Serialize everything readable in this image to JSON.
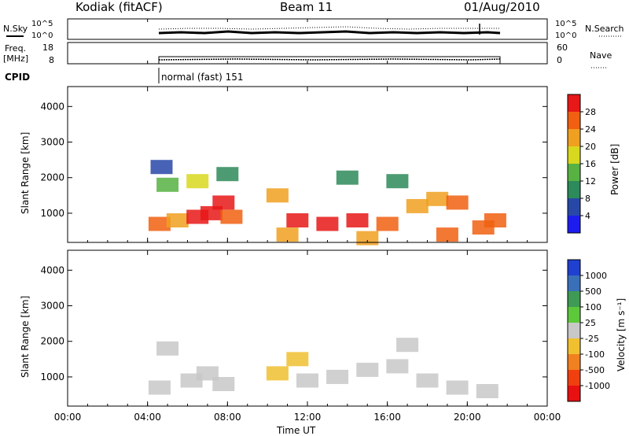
{
  "header": {
    "title": "Kodiak (fitACF)",
    "beam": "Beam 11",
    "date": "01/Aug/2010"
  },
  "noise_panel": {
    "left_label": "N.Sky",
    "left_ticks": [
      "10^5",
      "10^0"
    ],
    "right_ticks": [
      "10^5",
      "10^0"
    ],
    "right_label": "N.Search"
  },
  "freq_panel": {
    "left_label_line1": "Freq.",
    "left_label_line2": "[MHz]",
    "left_ticks": [
      "18",
      "8"
    ],
    "right_ticks": [
      "60",
      "0"
    ],
    "right_label": "Nave"
  },
  "cpid": {
    "label": "CPID",
    "program": "normal (fast) 151"
  },
  "time_axis": {
    "label": "Time UT",
    "ticks": [
      "00:00",
      "04:00",
      "08:00",
      "12:00",
      "16:00",
      "20:00",
      "00:00"
    ]
  },
  "range_axis": {
    "label": "Slant Range [km]",
    "ticks": [
      "1000",
      "2000",
      "3000",
      "4000"
    ]
  },
  "colorbars": {
    "power": {
      "label": "Power [dB]",
      "ticks": [
        "4",
        "8",
        "12",
        "16",
        "20",
        "24",
        "28"
      ],
      "colors": [
        "#1c1cf0",
        "#2848a8",
        "#2d8a5a",
        "#57b243",
        "#d8d81e",
        "#f0a020",
        "#f06010",
        "#e81818"
      ]
    },
    "velocity": {
      "label": "Velocity [m s⁻¹]",
      "ticks": [
        "1000",
        "500",
        "100",
        "25",
        "-25",
        "-100",
        "-500",
        "-1000"
      ],
      "colors": [
        "#2040d0",
        "#3a70b8",
        "#3f9a55",
        "#5cc83a",
        "#c8c8c8",
        "#f0c030",
        "#f08020",
        "#f04010",
        "#e81010"
      ]
    }
  },
  "chart_data": [
    {
      "type": "heatmap",
      "title": "Power",
      "xlabel": "Time UT",
      "ylabel": "Slant Range [km]",
      "xlim": [
        0,
        24
      ],
      "ylim": [
        180,
        4560
      ],
      "clabel": "Power [dB]",
      "clim": [
        0,
        32
      ],
      "cells": [
        [
          4.6,
          700,
          24
        ],
        [
          5.5,
          800,
          20
        ],
        [
          6.5,
          900,
          28
        ],
        [
          7.2,
          1000,
          30
        ],
        [
          7.8,
          1300,
          30
        ],
        [
          8.2,
          900,
          24
        ],
        [
          5.0,
          1800,
          14
        ],
        [
          6.5,
          1900,
          16
        ],
        [
          8.0,
          2100,
          10
        ],
        [
          4.7,
          2300,
          6
        ],
        [
          10.5,
          1500,
          20
        ],
        [
          11.5,
          800,
          28
        ],
        [
          13.0,
          700,
          30
        ],
        [
          14.5,
          800,
          28
        ],
        [
          16.0,
          700,
          26
        ],
        [
          17.5,
          1200,
          20
        ],
        [
          18.5,
          1400,
          22
        ],
        [
          19.5,
          1300,
          24
        ],
        [
          20.8,
          600,
          26
        ],
        [
          21.4,
          800,
          24
        ],
        [
          11.0,
          400,
          20
        ],
        [
          15.0,
          300,
          22
        ],
        [
          19.0,
          400,
          24
        ],
        [
          14.0,
          2000,
          8
        ],
        [
          16.5,
          1900,
          10
        ]
      ]
    },
    {
      "type": "heatmap",
      "title": "Velocity",
      "xlabel": "Time UT",
      "ylabel": "Slant Range [km]",
      "xlim": [
        0,
        24
      ],
      "ylim": [
        180,
        4560
      ],
      "clabel": "Velocity [m s⁻¹]",
      "clim": [
        -1000,
        1000
      ],
      "cells": [
        [
          4.6,
          700,
          0
        ],
        [
          6.2,
          900,
          50
        ],
        [
          7.0,
          1100,
          60
        ],
        [
          7.8,
          800,
          40
        ],
        [
          5.0,
          1800,
          -10
        ],
        [
          10.5,
          1100,
          -150
        ],
        [
          12.0,
          900,
          0
        ],
        [
          13.5,
          1000,
          0
        ],
        [
          15.0,
          1200,
          5
        ],
        [
          16.5,
          1300,
          0
        ],
        [
          18.0,
          900,
          -20
        ],
        [
          19.5,
          700,
          0
        ],
        [
          21.0,
          600,
          10
        ],
        [
          11.5,
          1500,
          -300
        ],
        [
          17.0,
          1900,
          -40
        ]
      ]
    }
  ]
}
